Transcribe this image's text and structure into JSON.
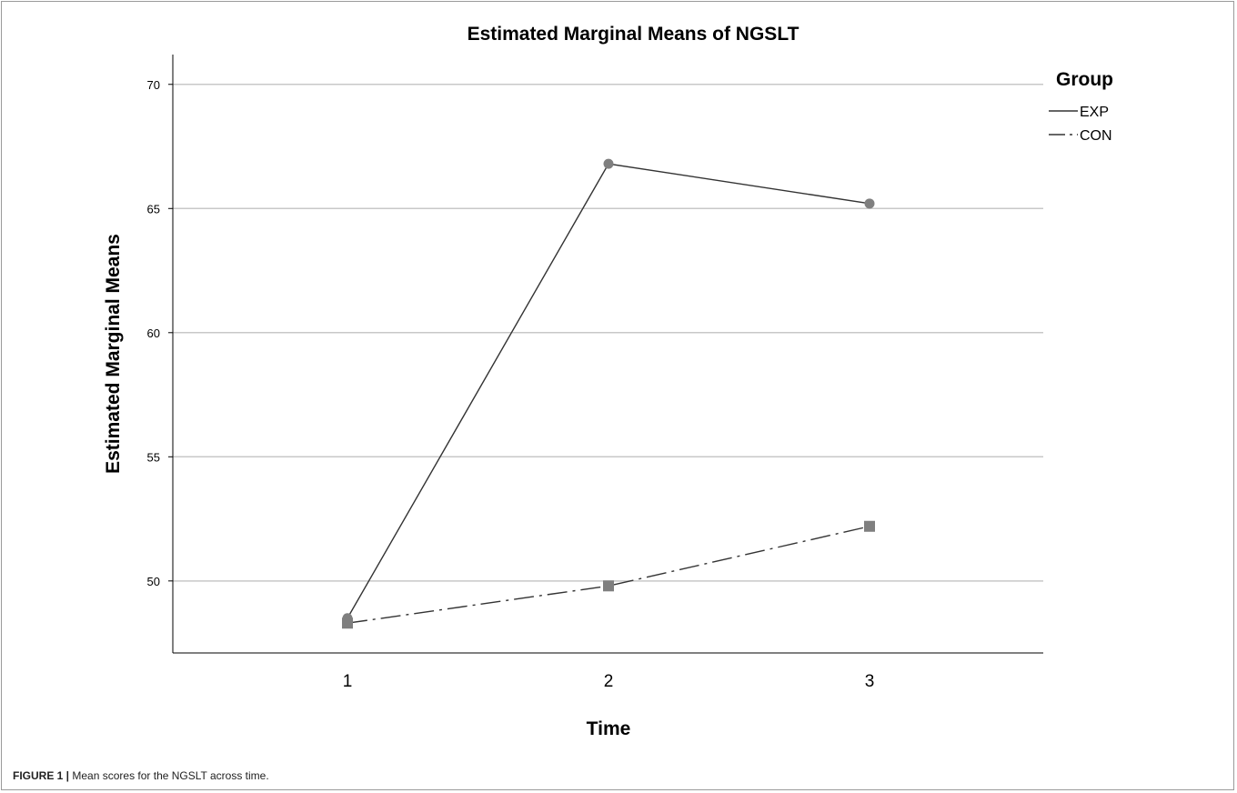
{
  "chart_data": {
    "type": "line",
    "title": "Estimated Marginal Means of NGSLT",
    "xlabel": "Time",
    "ylabel": "Estimated Marginal Means",
    "categories": [
      "1",
      "2",
      "3"
    ],
    "y_ticks": [
      50,
      55,
      60,
      65,
      70
    ],
    "ylim": [
      47.1,
      71.2
    ],
    "grid": true,
    "legend": {
      "title": "Group",
      "position": "top-right"
    },
    "series": [
      {
        "name": "EXP",
        "values": [
          48.5,
          66.8,
          65.2
        ],
        "line_style": "solid",
        "marker": "circle",
        "color": "#333333"
      },
      {
        "name": "CON",
        "values": [
          48.3,
          49.8,
          52.2
        ],
        "line_style": "dash-dot",
        "marker": "square",
        "color": "#333333"
      }
    ],
    "marker_color": "#7f7f7f",
    "grid_color": "#c8c8c8"
  },
  "caption": {
    "label": "FIGURE 1 |",
    "text": " Mean scores for the NGSLT across time."
  }
}
